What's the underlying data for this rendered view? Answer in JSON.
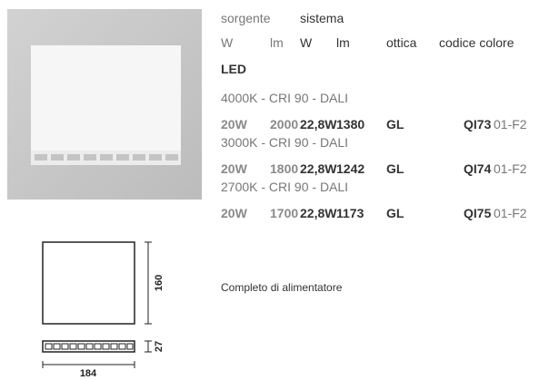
{
  "header": {
    "sorgente": "sorgente",
    "sistema": "sistema",
    "columns": [
      "W",
      "lm",
      "W",
      "lm",
      "ottica",
      "codice colore"
    ]
  },
  "section": "LED",
  "groups": [
    {
      "label": "4000K - CRI 90 - DALI",
      "row": [
        "20W",
        "2000",
        "22,8W",
        "1380",
        "GL"
      ],
      "code": "QI73",
      "suffix": "01-F2"
    },
    {
      "label": "3000K - CRI 90 - DALI",
      "row": [
        "20W",
        "1800",
        "22,8W",
        "1242",
        "GL"
      ],
      "code": "QI74",
      "suffix": "01-F2"
    },
    {
      "label": "2700K - CRI 90 - DALI",
      "row": [
        "20W",
        "1700",
        "22,8W",
        "1173",
        "GL"
      ],
      "code": "QI75",
      "suffix": "01-F2"
    }
  ],
  "note": "Completo di alimentatore",
  "dimensions": {
    "height": 160,
    "depth": 27,
    "width": 184
  }
}
